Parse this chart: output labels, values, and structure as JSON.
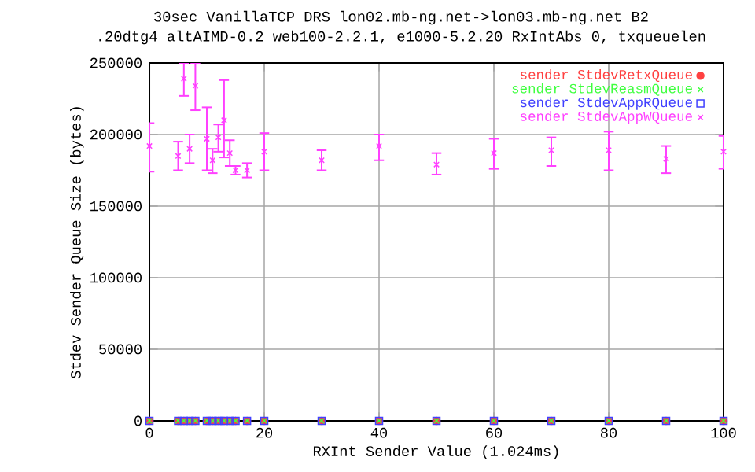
{
  "chart_data": {
    "type": "scatter",
    "title": "30sec VanillaTCP DRS lon02.mb-ng.net->lon03.mb-ng.net B2",
    "subtitle": ".20dtg4 altAIMD-0.2 web100-2.2.1, e1000-5.2.20 RxIntAbs 0, txqueuelen",
    "xlabel": "RXInt Sender Value (1.024ms)",
    "ylabel": "Stdev Sender Queue Size (bytes)",
    "x": [
      0,
      5,
      6,
      7,
      8,
      10,
      11,
      12,
      13,
      14,
      15,
      17,
      20,
      30,
      40,
      50,
      60,
      70,
      80,
      90,
      100
    ],
    "series": [
      {
        "name": "sender StdevRetxQueue",
        "color": "#ff4040",
        "marker": "circle",
        "values": [
          0,
          0,
          0,
          0,
          0,
          0,
          0,
          0,
          0,
          0,
          0,
          0,
          0,
          0,
          0,
          0,
          0,
          0,
          0,
          0,
          0
        ]
      },
      {
        "name": "sender StdevReasmQueue",
        "color": "#40ff40",
        "marker": "cross",
        "values": [
          0,
          0,
          0,
          0,
          0,
          0,
          0,
          0,
          0,
          0,
          0,
          0,
          0,
          0,
          0,
          0,
          0,
          0,
          0,
          0,
          0
        ]
      },
      {
        "name": "sender StdevAppRQueue",
        "color": "#4040ff",
        "marker": "square",
        "values": [
          0,
          0,
          0,
          0,
          0,
          0,
          0,
          0,
          0,
          0,
          0,
          0,
          0,
          0,
          0,
          0,
          0,
          0,
          0,
          0,
          0
        ]
      },
      {
        "name": "sender StdevAppWQueue",
        "color": "#ff40ff",
        "marker": "cross",
        "values": [
          192000,
          185000,
          239000,
          190000,
          234000,
          197000,
          182000,
          198000,
          210000,
          187000,
          175000,
          175000,
          188000,
          182000,
          192000,
          179000,
          187000,
          189000,
          189000,
          183000,
          188000
        ],
        "errors": [
          [
            174000,
            208000
          ],
          [
            175000,
            195000
          ],
          [
            227000,
            250000
          ],
          [
            180000,
            200000
          ],
          [
            217000,
            250000
          ],
          [
            175000,
            219000
          ],
          [
            173000,
            190000
          ],
          [
            188000,
            207000
          ],
          [
            184000,
            238000
          ],
          [
            178000,
            196000
          ],
          [
            172000,
            178000
          ],
          [
            170000,
            180000
          ],
          [
            175000,
            201000
          ],
          [
            175000,
            189000
          ],
          [
            182000,
            200000
          ],
          [
            172000,
            187000
          ],
          [
            176000,
            197000
          ],
          [
            178000,
            198000
          ],
          [
            175000,
            202000
          ],
          [
            173000,
            192000
          ],
          [
            176000,
            199000
          ]
        ]
      }
    ],
    "xlim": [
      0,
      100
    ],
    "xticks": [
      0,
      20,
      40,
      60,
      80,
      100
    ],
    "ylim": [
      0,
      250000
    ],
    "yticks": [
      0,
      50000,
      100000,
      150000,
      200000,
      250000
    ],
    "grid": true,
    "legend": "top right"
  }
}
